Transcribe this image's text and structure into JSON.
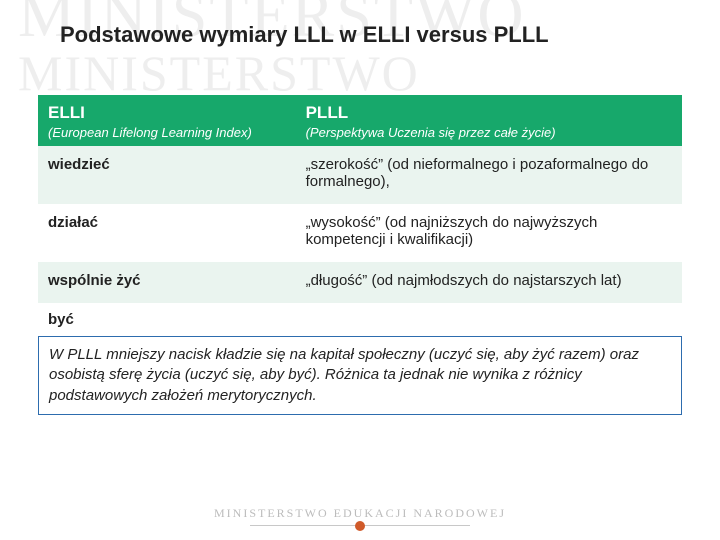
{
  "watermark": "MINISTERSTWO",
  "title": "Podstawowe wymiary LLL w ELLI versus PLLL",
  "table": {
    "header": {
      "left": "ELLI",
      "right": "PLLL"
    },
    "subheader": {
      "left": "(European  Lifelong Learning Index)",
      "right": "(Perspektywa Uczenia się przez całe życie)"
    },
    "rows": [
      {
        "left": "wiedzieć",
        "right": "„szerokość” (od nieformalnego i pozaformalnego do formalnego),"
      },
      {
        "left": "działać",
        "right": "„wysokość” (od najniższych do najwyższych kompetencji i kwalifikacji)"
      },
      {
        "left": "wspólnie żyć",
        "right": "„długość” (od najmłodszych do najstarszych lat)"
      },
      {
        "left": "być",
        "right": ""
      }
    ]
  },
  "note": "W PLLL mniejszy nacisk kładzie się na kapitał społeczny (uczyć się, aby żyć razem) oraz osobistą sferę życia (uczyć się, aby być). Różnica ta jednak nie wynika z różnicy podstawowych założeń merytorycznych.",
  "footer": "MINISTERSTWO EDUKACJI NARODOWEJ",
  "colors": {
    "header_bg": "#17a86b",
    "header_fg": "#ffffff",
    "alt_row_bg": "#eaf4ef",
    "note_border": "#2d6cae",
    "watermark": "#eeeeee",
    "footer_text": "#bcbcbc",
    "footer_dot": "#d05a2a"
  }
}
